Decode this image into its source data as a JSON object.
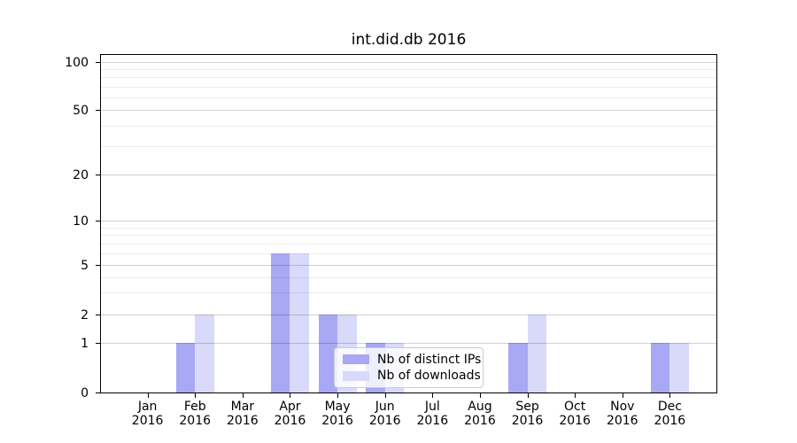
{
  "title": "int.did.db 2016",
  "chart_data": {
    "type": "bar",
    "title": "int.did.db 2016",
    "categories": [
      "Jan 2016",
      "Feb 2016",
      "Mar 2016",
      "Apr 2016",
      "May 2016",
      "Jun 2016",
      "Jul 2016",
      "Aug 2016",
      "Sep 2016",
      "Oct 2016",
      "Nov 2016",
      "Dec 2016"
    ],
    "series": [
      {
        "name": "Nb of distinct IPs",
        "color": "#a8a8f5",
        "values": [
          0,
          1,
          0,
          6,
          2,
          1,
          0,
          0,
          1,
          0,
          0,
          1
        ]
      },
      {
        "name": "Nb of downloads",
        "color": "#d9d9fa",
        "values": [
          0,
          2,
          0,
          6,
          2,
          1,
          0,
          0,
          2,
          0,
          0,
          1
        ]
      }
    ],
    "xlabel": "",
    "ylabel": "",
    "yscale": "symlog",
    "ylim": [
      0,
      100
    ],
    "yticks": [
      0,
      1,
      2,
      5,
      10,
      20,
      50,
      100
    ],
    "minor_gridlines": [
      3,
      4,
      6,
      7,
      8,
      9,
      30,
      40,
      60,
      70,
      80,
      90
    ],
    "grid": true,
    "legend_position": "lower center"
  }
}
